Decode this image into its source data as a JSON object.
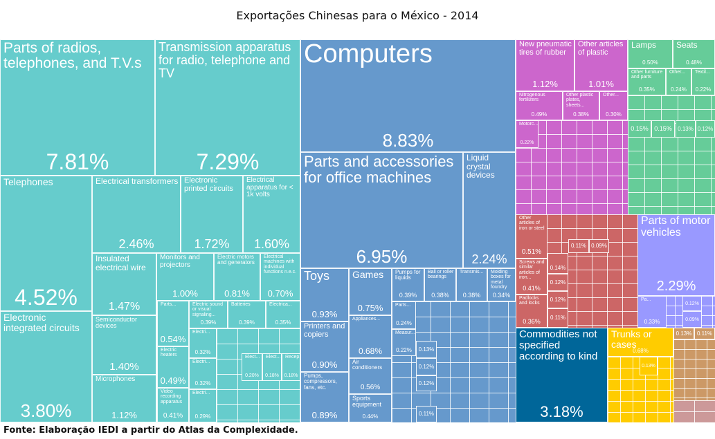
{
  "title": "Exportações Chinesas para o México - 2014",
  "footer": "Fonte: Elaboração IEDI a partir do Atlas da Complexidade.",
  "chart_data": {
    "type": "treemap",
    "title": "Exportações Chinesas para o México - 2014",
    "groups": {
      "electronics": "#66CCCC",
      "machinery": "#6699CC",
      "chemicals_plastics": "#CC66CC",
      "other": "#66CC99",
      "metals": "#CC6666",
      "transportation": "#9999FF",
      "unspecified": "#006699",
      "textiles": "#FFCC00",
      "stone_minerals": "#CC9966",
      "misc": "#CC9999"
    },
    "items": [
      {
        "label": "Parts of radios, telephones, and T.V.s",
        "value": "7.81%",
        "group": "electronics"
      },
      {
        "label": "Transmission apparatus for radio, telephone and TV",
        "value": "7.29%",
        "group": "electronics"
      },
      {
        "label": "Telephones",
        "value": "4.52%",
        "group": "electronics"
      },
      {
        "label": "Electronic integrated circuits",
        "value": "3.80%",
        "group": "electronics"
      },
      {
        "label": "Electrical transformers",
        "value": "2.46%",
        "group": "electronics"
      },
      {
        "label": "Electronic printed circuits",
        "value": "1.72%",
        "group": "electronics"
      },
      {
        "label": "Electrical apparatus for < 1k volts",
        "value": "1.60%",
        "group": "electronics"
      },
      {
        "label": "Insulated electrical wire",
        "value": "1.47%",
        "group": "electronics"
      },
      {
        "label": "Semiconductor devices",
        "value": "1.40%",
        "group": "electronics"
      },
      {
        "label": "Microphones",
        "value": "1.12%",
        "group": "electronics"
      },
      {
        "label": "Monitors and projectors",
        "value": "1.00%",
        "group": "electronics"
      },
      {
        "label": "Electric motors and generators",
        "value": "0.81%",
        "group": "electronics"
      },
      {
        "label": "Electrical machines with individual functions n.e.c.",
        "value": "0.70%",
        "group": "electronics"
      },
      {
        "label": "Parts...",
        "value": "0.54%",
        "group": "electronics"
      },
      {
        "label": "Electric heaters",
        "value": "0.49%",
        "group": "electronics"
      },
      {
        "label": "Video recording apparatus",
        "value": "0.41%",
        "group": "electronics"
      },
      {
        "label": "Electric sound or visual signaling...",
        "value": "0.39%",
        "group": "electronics"
      },
      {
        "label": "Batteries",
        "value": "0.39%",
        "group": "electronics"
      },
      {
        "label": "Electrica...",
        "value": "0.35%",
        "group": "electronics"
      },
      {
        "label": "Electri...",
        "value": "0.32%",
        "group": "electronics"
      },
      {
        "label": "Electri...",
        "value": "0.32%",
        "group": "electronics"
      },
      {
        "label": "Electri...",
        "value": "0.29%",
        "group": "electronics"
      },
      {
        "label": "Elect...",
        "value": "0.20%",
        "group": "electronics"
      },
      {
        "label": "Elect...",
        "value": "0.18%",
        "group": "electronics"
      },
      {
        "label": "Recep...",
        "value": "0.18%",
        "group": "electronics"
      },
      {
        "label": "Computers",
        "value": "8.83%",
        "group": "machinery"
      },
      {
        "label": "Parts and accessories for office machines",
        "value": "6.95%",
        "group": "machinery"
      },
      {
        "label": "Liquid crystal devices",
        "value": "2.24%",
        "group": "machinery"
      },
      {
        "label": "Toys",
        "value": "0.93%",
        "group": "machinery"
      },
      {
        "label": "Printers and copiers",
        "value": "0.90%",
        "group": "machinery"
      },
      {
        "label": "Pumps, compressors, fans, etc.",
        "value": "0.89%",
        "group": "machinery"
      },
      {
        "label": "Games",
        "value": "0.75%",
        "group": "machinery"
      },
      {
        "label": "Appliances...",
        "value": "0.68%",
        "group": "machinery"
      },
      {
        "label": "Air conditioners",
        "value": "0.56%",
        "group": "machinery"
      },
      {
        "label": "Sports equipment",
        "value": "0.44%",
        "group": "machinery"
      },
      {
        "label": "Pumps for liquids",
        "value": "0.39%",
        "group": "machinery"
      },
      {
        "label": "Ball or roller bearings",
        "value": "0.38%",
        "group": "machinery"
      },
      {
        "label": "Transmis...",
        "value": "0.38%",
        "group": "machinery"
      },
      {
        "label": "Molding boxes for metal foundry",
        "value": "0.34%",
        "group": "machinery"
      },
      {
        "label": "Parts...",
        "value": "0.24%",
        "group": "machinery"
      },
      {
        "label": "Measur...",
        "value": "0.22%",
        "group": "machinery"
      },
      {
        "label": "",
        "value": "0.13%",
        "group": "machinery"
      },
      {
        "label": "",
        "value": "0.12%",
        "group": "machinery"
      },
      {
        "label": "",
        "value": "0.12%",
        "group": "machinery"
      },
      {
        "label": "",
        "value": "0.11%",
        "group": "machinery"
      },
      {
        "label": "New pneumatic tires of rubber",
        "value": "1.12%",
        "group": "chemicals_plastics"
      },
      {
        "label": "Other articles of plastic",
        "value": "1.01%",
        "group": "chemicals_plastics"
      },
      {
        "label": "Nitrogenous fertilizers",
        "value": "0.49%",
        "group": "chemicals_plastics"
      },
      {
        "label": "Other plastic plates, sheets...",
        "value": "0.38%",
        "group": "chemicals_plastics"
      },
      {
        "label": "Other...",
        "value": "0.30%",
        "group": "chemicals_plastics"
      },
      {
        "label": "Motorc...",
        "value": "0.22%",
        "group": "chemicals_plastics"
      },
      {
        "label": "Lamps",
        "value": "0.50%",
        "group": "other"
      },
      {
        "label": "Seats",
        "value": "0.48%",
        "group": "other"
      },
      {
        "label": "Other furniture and parts",
        "value": "0.35%",
        "group": "other"
      },
      {
        "label": "Other...",
        "value": "0.24%",
        "group": "other"
      },
      {
        "label": "Textil...",
        "value": "0.22%",
        "group": "other"
      },
      {
        "label": "",
        "value": "0.15%",
        "group": "other"
      },
      {
        "label": "",
        "value": "0.15%",
        "group": "other"
      },
      {
        "label": "",
        "value": "0.13%",
        "group": "other"
      },
      {
        "label": "",
        "value": "0.12%",
        "group": "other"
      },
      {
        "label": "Other articles of iron or steel",
        "value": "0.51%",
        "group": "metals"
      },
      {
        "label": "Screws and similar articles of iron...",
        "value": "0.41%",
        "group": "metals"
      },
      {
        "label": "Padlocks and locks",
        "value": "0.36%",
        "group": "metals"
      },
      {
        "label": "",
        "value": "0.14%",
        "group": "metals"
      },
      {
        "label": "",
        "value": "0.12%",
        "group": "metals"
      },
      {
        "label": "",
        "value": "0.12%",
        "group": "metals"
      },
      {
        "label": "",
        "value": "0.11%",
        "group": "metals"
      },
      {
        "label": "",
        "value": "0.11%",
        "group": "metals"
      },
      {
        "label": "",
        "value": "0.09%",
        "group": "metals"
      },
      {
        "label": "Parts of motor vehicles",
        "value": "2.29%",
        "group": "transportation"
      },
      {
        "label": "Pa...",
        "value": "0.33%",
        "group": "transportation"
      },
      {
        "label": "",
        "value": "0.12%",
        "group": "transportation"
      },
      {
        "label": "",
        "value": "0.09%",
        "group": "transportation"
      },
      {
        "label": "Commodities not specified according to kind",
        "value": "3.18%",
        "group": "unspecified"
      },
      {
        "label": "Trunks or cases",
        "value": "0.68%",
        "group": "textiles"
      },
      {
        "label": "",
        "value": "0.13%",
        "group": "textiles"
      },
      {
        "label": "",
        "value": "0.13%",
        "group": "stone_minerals"
      },
      {
        "label": "",
        "value": "0.11%",
        "group": "stone_minerals"
      }
    ]
  }
}
